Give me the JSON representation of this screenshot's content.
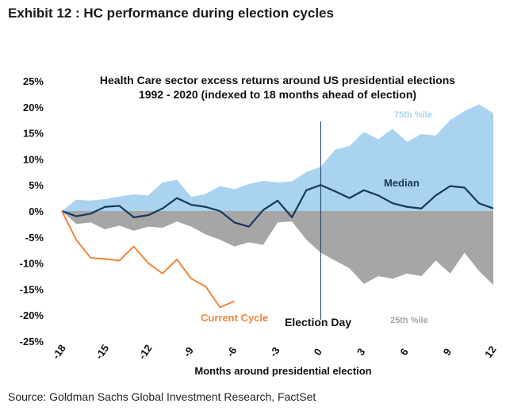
{
  "exhibit_title": "Exhibit 12 : HC performance during election cycles",
  "source": "Source: Goldman Sachs Global Investment Research, FactSet",
  "chart_data": {
    "type": "area",
    "title_lines": [
      "Health Care sector excess returns around US presidential elections",
      "1992 - 2020 (indexed to 18 months ahead of election)"
    ],
    "xlabel": "Months around presidential election",
    "ylabel": "",
    "xlim": [
      -18,
      12
    ],
    "ylim": [
      -0.25,
      0.25
    ],
    "x_ticks": [
      -18,
      -15,
      -12,
      -9,
      -6,
      -3,
      0,
      3,
      6,
      9,
      12
    ],
    "y_ticks": [
      {
        "value": 0.25,
        "label": "25%"
      },
      {
        "value": 0.2,
        "label": "20%"
      },
      {
        "value": 0.15,
        "label": "15%"
      },
      {
        "value": 0.1,
        "label": "10%"
      },
      {
        "value": 0.05,
        "label": "5%"
      },
      {
        "value": 0.0,
        "label": "0%"
      },
      {
        "value": -0.05,
        "label": "-5%"
      },
      {
        "value": -0.1,
        "label": "-10%"
      },
      {
        "value": -0.15,
        "label": "-15%"
      },
      {
        "value": -0.2,
        "label": "-20%"
      },
      {
        "value": -0.25,
        "label": "-25%"
      }
    ],
    "x": [
      -18,
      -17,
      -16,
      -15,
      -14,
      -13,
      -12,
      -11,
      -10,
      -9,
      -8,
      -7,
      -6,
      -5,
      -4,
      -3,
      -2,
      -1,
      0,
      1,
      2,
      3,
      4,
      5,
      6,
      7,
      8,
      9,
      10,
      11,
      12
    ],
    "series": [
      {
        "name": "75th %ile",
        "kind": "area",
        "color": "#a9d3ee",
        "values": [
          0.0,
          0.022,
          0.02,
          0.023,
          0.028,
          0.032,
          0.03,
          0.055,
          0.06,
          0.027,
          0.033,
          0.048,
          0.042,
          0.052,
          0.058,
          0.055,
          0.057,
          0.075,
          0.085,
          0.118,
          0.125,
          0.152,
          0.138,
          0.158,
          0.133,
          0.148,
          0.145,
          0.175,
          0.192,
          0.205,
          0.188
        ]
      },
      {
        "name": "25th %ile",
        "kind": "area",
        "color": "#a6a6a6",
        "values": [
          0.0,
          -0.025,
          -0.022,
          -0.035,
          -0.028,
          -0.038,
          -0.03,
          -0.032,
          -0.02,
          -0.03,
          -0.045,
          -0.055,
          -0.068,
          -0.06,
          -0.065,
          -0.022,
          -0.02,
          -0.055,
          -0.08,
          -0.095,
          -0.11,
          -0.14,
          -0.125,
          -0.13,
          -0.12,
          -0.125,
          -0.095,
          -0.12,
          -0.08,
          -0.115,
          -0.142
        ]
      },
      {
        "name": "Median",
        "kind": "line",
        "color": "#17375e",
        "values": [
          0.0,
          -0.01,
          -0.005,
          0.008,
          0.01,
          -0.012,
          -0.008,
          0.005,
          0.025,
          0.012,
          0.008,
          0.0,
          -0.022,
          -0.03,
          0.002,
          0.02,
          -0.012,
          0.04,
          0.05,
          0.038,
          0.025,
          0.04,
          0.03,
          0.015,
          0.008,
          0.005,
          0.03,
          0.048,
          0.045,
          0.015,
          0.005
        ]
      },
      {
        "name": "Current Cycle",
        "kind": "line",
        "color": "#f0853a",
        "x": [
          -18,
          -17,
          -16,
          -15,
          -14,
          -13,
          -12,
          -11,
          -10,
          -9,
          -8,
          -7,
          -6
        ],
        "values": [
          0.0,
          -0.055,
          -0.09,
          -0.092,
          -0.095,
          -0.068,
          -0.1,
          -0.12,
          -0.093,
          -0.13,
          -0.145,
          -0.185,
          -0.173
        ]
      }
    ],
    "annotations": [
      {
        "text": "75th %ile",
        "color": "#a9d3ee"
      },
      {
        "text": "Median",
        "color": "#17375e"
      },
      {
        "text": "Current Cycle",
        "color": "#f0853a"
      },
      {
        "text": "Election Day",
        "color": "#111111"
      },
      {
        "text": "25th %ile",
        "color": "#a6a6a6"
      }
    ],
    "vertical_marker_x": 0,
    "grid": false
  }
}
